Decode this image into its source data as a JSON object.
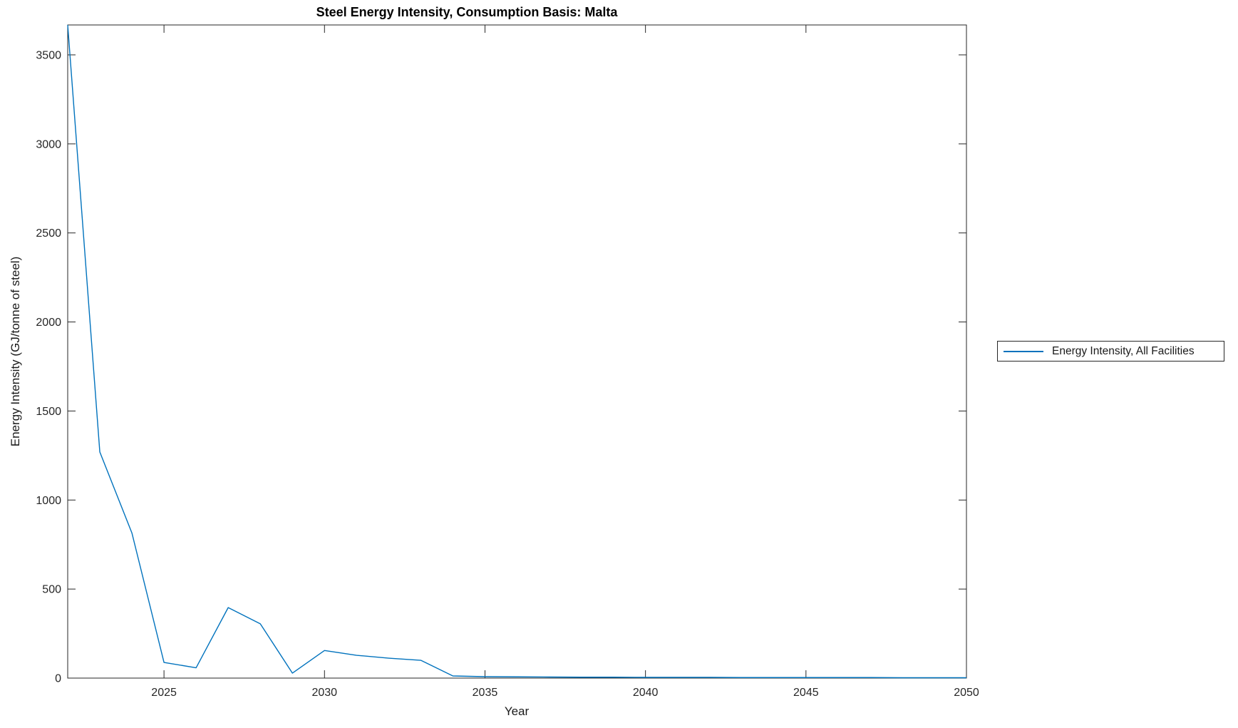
{
  "figure": {
    "background": "#ffffff"
  },
  "chart_data": {
    "type": "line",
    "title": "Steel Energy Intensity, Consumption Basis: Malta",
    "xlabel": "Year",
    "ylabel": "Energy Intensity (GJ/tonne of steel)",
    "xlim": [
      2022,
      2050
    ],
    "ylim": [
      0,
      3668
    ],
    "x_ticks": [
      2025,
      2030,
      2035,
      2040,
      2045,
      2050
    ],
    "y_ticks": [
      0,
      500,
      1000,
      1500,
      2000,
      2500,
      3000,
      3500
    ],
    "grid": false,
    "box": true,
    "tick_direction": "in",
    "axis_color": "#262626",
    "legend": {
      "position": "outside-right",
      "entries": [
        "Energy Intensity, All Facilities"
      ]
    },
    "series": [
      {
        "name": "Energy Intensity, All Facilities",
        "color": "#0072BD",
        "x": [
          2022,
          2023,
          2024,
          2025,
          2026,
          2027,
          2028,
          2029,
          2030,
          2031,
          2032,
          2033,
          2034,
          2035,
          2036,
          2037,
          2038,
          2039,
          2040,
          2041,
          2042,
          2043,
          2044,
          2045,
          2046,
          2047,
          2048,
          2049,
          2050
        ],
        "y": [
          3668,
          1270,
          815,
          88,
          58,
          396,
          305,
          28,
          155,
          128,
          112,
          100,
          12,
          8,
          7,
          6,
          5,
          5,
          4,
          4,
          4,
          3,
          3,
          3,
          3,
          3,
          2,
          2,
          2
        ]
      }
    ]
  }
}
